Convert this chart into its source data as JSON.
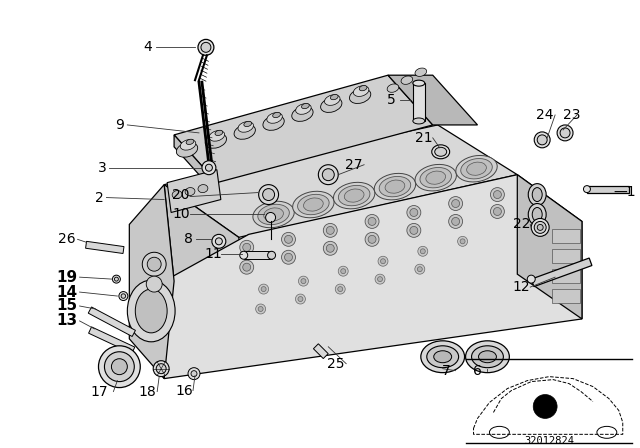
{
  "bg_color": "#ffffff",
  "diagram_number": "32012824",
  "fig_width": 6.4,
  "fig_height": 4.48,
  "dpi": 100,
  "line_color": "#000000",
  "gray_light": "#cccccc",
  "gray_mid": "#999999",
  "gray_dark": "#555555",
  "label_fontsize": 10,
  "label_bold_fontsize": 11,
  "part_numbers": {
    "1": [
      614,
      192,
      false
    ],
    "2": [
      100,
      198,
      false
    ],
    "3": [
      103,
      168,
      false
    ],
    "4": [
      148,
      47,
      false
    ],
    "5": [
      393,
      100,
      false
    ],
    "6": [
      480,
      372,
      false
    ],
    "7": [
      449,
      372,
      false
    ],
    "8": [
      189,
      240,
      false
    ],
    "9": [
      120,
      125,
      false
    ],
    "10": [
      182,
      215,
      false
    ],
    "11": [
      214,
      255,
      false
    ],
    "12": [
      524,
      288,
      false
    ],
    "13": [
      67,
      322,
      true
    ],
    "14": [
      67,
      293,
      true
    ],
    "15": [
      67,
      307,
      true
    ],
    "16": [
      185,
      392,
      false
    ],
    "17": [
      100,
      393,
      false
    ],
    "18": [
      148,
      393,
      false
    ],
    "19": [
      67,
      278,
      true
    ],
    "20": [
      182,
      195,
      false
    ],
    "21": [
      426,
      138,
      false
    ],
    "22": [
      524,
      225,
      false
    ],
    "23": [
      575,
      115,
      false
    ],
    "24": [
      548,
      115,
      false
    ],
    "25": [
      337,
      365,
      false
    ],
    "26": [
      67,
      240,
      false
    ],
    "27": [
      356,
      165,
      false
    ]
  },
  "dash_label": [
    "-1",
    614,
    192
  ],
  "leader_lines": [
    [
      148,
      47,
      196,
      47
    ],
    [
      120,
      125,
      205,
      133
    ],
    [
      103,
      168,
      193,
      168
    ],
    [
      100,
      198,
      170,
      202
    ],
    [
      393,
      100,
      416,
      100
    ],
    [
      426,
      138,
      440,
      148
    ],
    [
      189,
      240,
      218,
      240
    ],
    [
      67,
      240,
      103,
      243
    ],
    [
      182,
      195,
      261,
      195
    ],
    [
      182,
      215,
      273,
      215
    ],
    [
      214,
      255,
      256,
      255
    ],
    [
      524,
      288,
      560,
      278
    ],
    [
      67,
      322,
      105,
      335
    ],
    [
      67,
      293,
      120,
      300
    ],
    [
      67,
      307,
      107,
      312
    ],
    [
      185,
      392,
      200,
      382
    ],
    [
      100,
      393,
      125,
      375
    ],
    [
      148,
      393,
      162,
      382
    ],
    [
      67,
      278,
      111,
      283
    ],
    [
      182,
      195,
      265,
      185
    ],
    [
      548,
      115,
      543,
      130
    ],
    [
      575,
      115,
      570,
      130
    ],
    [
      524,
      225,
      548,
      225
    ],
    [
      337,
      365,
      355,
      355
    ],
    [
      356,
      165,
      340,
      173
    ],
    [
      449,
      372,
      455,
      358
    ],
    [
      480,
      372,
      487,
      358
    ]
  ]
}
